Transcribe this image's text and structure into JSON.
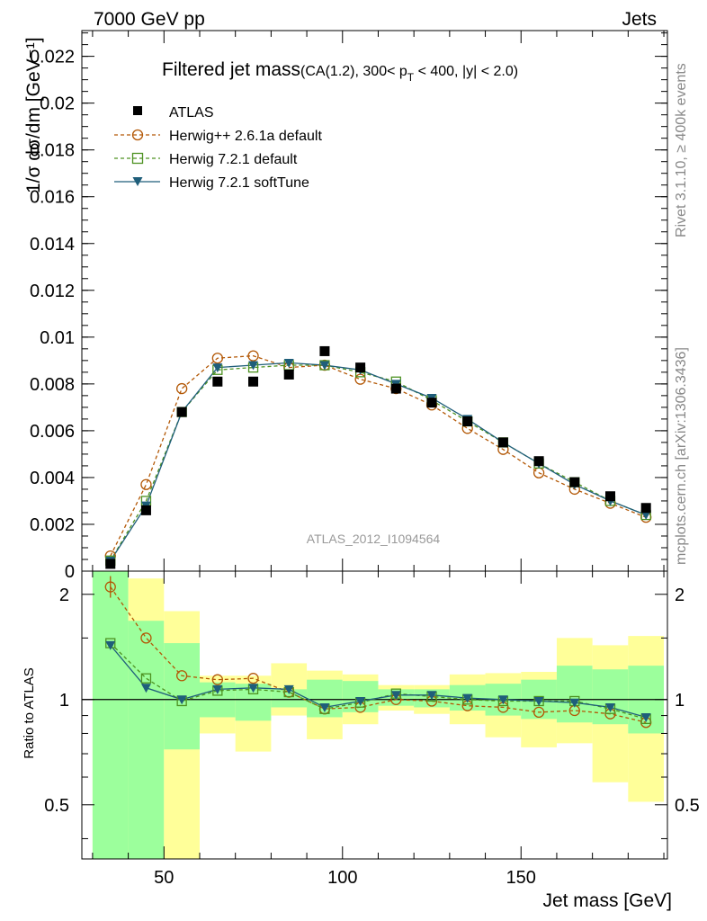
{
  "header": {
    "left": "7000 GeV pp",
    "right": "Jets"
  },
  "side_texts": {
    "rivet": "Rivet 3.1.10, ≥ 400k events",
    "mcplots": "mcplots.cern.ch [arXiv:1306.3436]"
  },
  "title": {
    "main": "Filtered jet mass",
    "sub": "(CA(1.2), 300< p",
    "sub_T": "T",
    "sub_rest": " < 400, |y| < 2.0)"
  },
  "watermark": "ATLAS_2012_I1094564",
  "colors": {
    "atlas": "#000000",
    "herwigpp": "#b35806",
    "herwig721": "#4d9221",
    "softtune": "#1f5e7a",
    "band_inner": "#9cff9c",
    "band_outer": "#ffff99"
  },
  "chart_data": [
    {
      "type": "scatter",
      "panel": "main",
      "ylabel": "1/σ dσ/dm [GeV⁻¹]",
      "xlim": [
        27,
        191
      ],
      "ylim": [
        0,
        0.0231
      ],
      "yticks": [
        0,
        0.002,
        0.004,
        0.006,
        0.008,
        0.01,
        0.012,
        0.014,
        0.016,
        0.018,
        0.02,
        0.022
      ],
      "ytick_labels": [
        "0",
        "0.002",
        "0.004",
        "0.006",
        "0.008",
        "0.01",
        "0.012",
        "0.014",
        "0.016",
        "0.018",
        "0.02",
        "0.022"
      ],
      "x": [
        35,
        45,
        55,
        65,
        75,
        85,
        95,
        105,
        115,
        125,
        135,
        145,
        155,
        165,
        175,
        185
      ],
      "series": [
        {
          "name": "ATLAS",
          "key": "atlas",
          "values": [
            0.00031,
            0.0026,
            0.0068,
            0.0081,
            0.0081,
            0.0084,
            0.0094,
            0.0087,
            0.0078,
            0.0072,
            0.0064,
            0.0055,
            0.0047,
            0.0038,
            0.0032,
            0.0027
          ]
        },
        {
          "name": "Herwig++ 2.6.1a default",
          "key": "herwigpp",
          "values": [
            0.00065,
            0.0037,
            0.0078,
            0.0091,
            0.0092,
            0.0087,
            0.0088,
            0.0082,
            0.0078,
            0.0071,
            0.0061,
            0.0052,
            0.0042,
            0.0035,
            0.0029,
            0.0023
          ]
        },
        {
          "name": "Herwig 7.2.1 default",
          "key": "herwig721",
          "values": [
            0.00045,
            0.003,
            0.0068,
            0.0086,
            0.0087,
            0.0088,
            0.0088,
            0.0085,
            0.0081,
            0.0073,
            0.0064,
            0.0055,
            0.0046,
            0.0038,
            0.003,
            0.0024
          ]
        },
        {
          "name": "Herwig 7.2.1 softTune",
          "key": "softtune",
          "values": [
            0.00044,
            0.0028,
            0.0068,
            0.0087,
            0.0088,
            0.0089,
            0.0088,
            0.0086,
            0.008,
            0.0074,
            0.0065,
            0.0055,
            0.0046,
            0.0037,
            0.003,
            0.0024
          ]
        }
      ]
    },
    {
      "type": "line",
      "panel": "ratio",
      "ylabel": "Ratio to ATLAS",
      "xlabel": "Jet mass [GeV]",
      "xlim": [
        27,
        191
      ],
      "ylim": [
        0.35,
        2.33
      ],
      "yticks": [
        0.5,
        1,
        2
      ],
      "ytick_labels": [
        "0.5",
        "1",
        "2"
      ],
      "xticks": [
        50,
        100,
        150
      ],
      "xtick_labels": [
        "50",
        "100",
        "150"
      ],
      "reference_line": 1,
      "x": [
        35,
        45,
        55,
        65,
        75,
        85,
        95,
        105,
        115,
        125,
        135,
        145,
        155,
        165,
        175,
        185
      ],
      "bins": [
        [
          30,
          40
        ],
        [
          40,
          50
        ],
        [
          50,
          60
        ],
        [
          60,
          70
        ],
        [
          70,
          80
        ],
        [
          80,
          90
        ],
        [
          90,
          100
        ],
        [
          100,
          110
        ],
        [
          110,
          120
        ],
        [
          120,
          130
        ],
        [
          130,
          140
        ],
        [
          140,
          150
        ],
        [
          150,
          160
        ],
        [
          160,
          170
        ],
        [
          170,
          180
        ],
        [
          180,
          190
        ]
      ],
      "band_inner": [
        [
          0.35,
          2.33
        ],
        [
          0.35,
          1.68
        ],
        [
          0.72,
          1.45
        ],
        [
          0.89,
          1.12
        ],
        [
          0.87,
          1.11
        ],
        [
          0.95,
          1.07
        ],
        [
          0.89,
          1.14
        ],
        [
          0.92,
          1.13
        ],
        [
          0.96,
          1.07
        ],
        [
          0.95,
          1.07
        ],
        [
          0.93,
          1.1
        ],
        [
          0.9,
          1.11
        ],
        [
          0.88,
          1.14
        ],
        [
          0.86,
          1.25
        ],
        [
          0.85,
          1.22
        ],
        [
          0.8,
          1.25
        ]
      ],
      "band_outer": [
        [
          0.35,
          2.33
        ],
        [
          0.35,
          2.22
        ],
        [
          0.35,
          1.79
        ],
        [
          0.8,
          1.17
        ],
        [
          0.71,
          1.17
        ],
        [
          0.9,
          1.27
        ],
        [
          0.77,
          1.21
        ],
        [
          0.85,
          1.18
        ],
        [
          0.93,
          1.1
        ],
        [
          0.91,
          1.1
        ],
        [
          0.85,
          1.18
        ],
        [
          0.78,
          1.19
        ],
        [
          0.73,
          1.2
        ],
        [
          0.75,
          1.5
        ],
        [
          0.58,
          1.43
        ],
        [
          0.51,
          1.52
        ]
      ],
      "series": [
        {
          "name": "Herwig++ 2.6.1a default",
          "key": "herwigpp",
          "values": [
            2.1,
            1.5,
            1.17,
            1.14,
            1.15,
            1.05,
            0.94,
            0.95,
            1.0,
            0.99,
            0.96,
            0.95,
            0.92,
            0.93,
            0.91,
            0.86
          ]
        },
        {
          "name": "Herwig 7.2.1 default",
          "key": "herwig721",
          "values": [
            1.45,
            1.15,
            0.99,
            1.06,
            1.07,
            1.05,
            0.94,
            0.98,
            1.04,
            1.02,
            1.0,
            0.99,
            0.99,
            0.99,
            0.94,
            0.88
          ]
        },
        {
          "name": "Herwig 7.2.1 softTune",
          "key": "softtune",
          "values": [
            1.43,
            1.08,
            1.0,
            1.07,
            1.08,
            1.07,
            0.95,
            0.99,
            1.03,
            1.03,
            1.01,
            1.0,
            0.99,
            0.98,
            0.95,
            0.89
          ]
        }
      ]
    }
  ]
}
